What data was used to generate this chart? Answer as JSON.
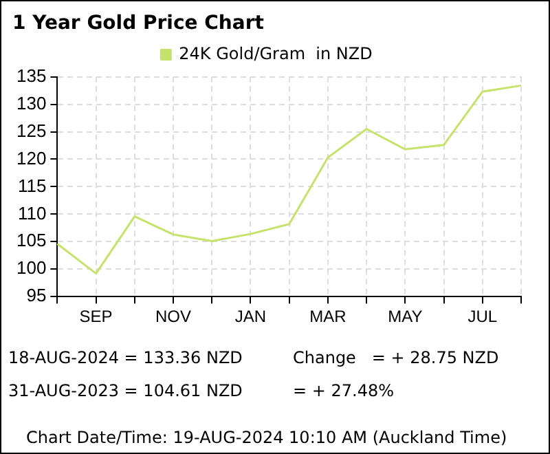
{
  "chart_data": {
    "type": "line",
    "title": "1 Year Gold Price Chart",
    "categories": [
      null,
      "SEP",
      null,
      "NOV",
      null,
      "JAN",
      null,
      "MAR",
      null,
      "MAY",
      null,
      "JUL",
      null
    ],
    "series": [
      {
        "name": "24K Gold/Gram  in NZD",
        "color": "#c5e36b",
        "values": [
          104.6,
          99.2,
          109.6,
          106.3,
          105.1,
          106.4,
          108.2,
          120.3,
          125.5,
          121.8,
          122.6,
          132.3,
          133.4
        ]
      }
    ],
    "ylim": [
      95,
      135
    ],
    "yticks": [
      95,
      100,
      105,
      110,
      115,
      120,
      125,
      130,
      135
    ],
    "grid": true,
    "legend": "top",
    "marker": "none",
    "line_style": "solid",
    "annotations": [
      "18-AUG-2024 = 133.36 NZD",
      "Change   = + 28.75 NZD",
      "31-AUG-2023 = 104.61 NZD",
      "= + 27.48%",
      "Chart Date/Time: 19-AUG-2024 10:10 AM (Auckland Time)"
    ]
  }
}
